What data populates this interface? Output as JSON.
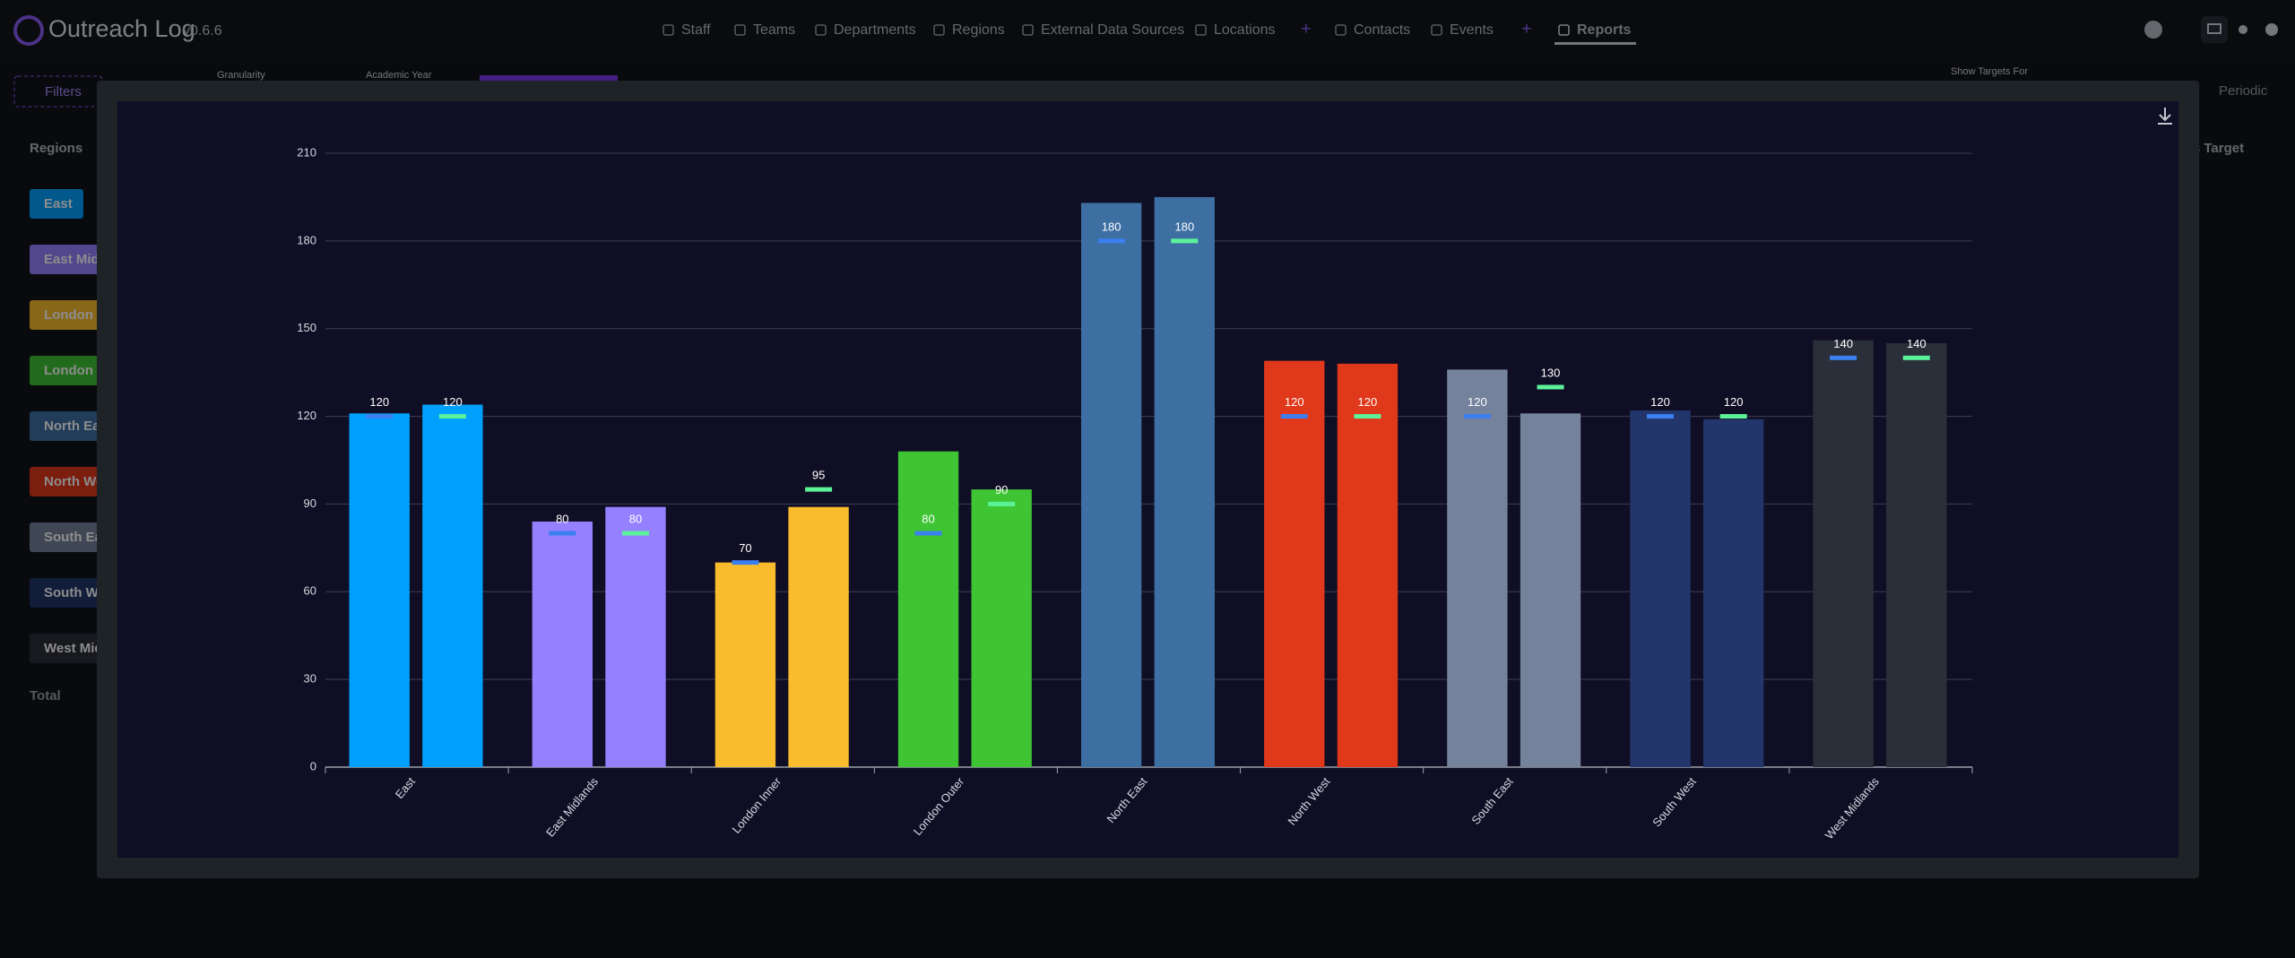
{
  "header": {
    "app_name": "Outreach Log",
    "version": "v0.6.6",
    "nav": [
      "Staff",
      "Teams",
      "Departments",
      "Regions",
      "External Data Sources",
      "Locations",
      "Contacts",
      "Events",
      "Reports"
    ]
  },
  "toolbar": {
    "filters": "Filters",
    "granularity": "Granularity",
    "academic_year": "Academic Year",
    "show_targets_for": "Show Targets For",
    "periodic": "Periodic"
  },
  "sidebar": {
    "title": "Regions",
    "items": [
      "East",
      "East Midlands",
      "London Inner",
      "London Outer",
      "North East",
      "North West",
      "South East",
      "South West",
      "West Midlands"
    ],
    "total": "Total"
  },
  "table": {
    "column": "Events Target"
  },
  "chart_data": {
    "type": "bar",
    "categories": [
      "East",
      "East Midlands",
      "London Inner",
      "London Outer",
      "North East",
      "North West",
      "South East",
      "South West",
      "West Midlands"
    ],
    "colors": [
      "#00a0ff",
      "#9580ff",
      "#f9bc2c",
      "#3fc433",
      "#3d6fa3",
      "#e0381a",
      "#74829c",
      "#22366b",
      "#2a2f3a"
    ],
    "series": [
      {
        "values": [
          121,
          84,
          70,
          108,
          193,
          139,
          136,
          122,
          146
        ],
        "target_values": [
          120,
          80,
          70,
          80,
          180,
          120,
          120,
          120,
          140
        ],
        "target_color": "#3b7ff0"
      },
      {
        "values": [
          124,
          89,
          89,
          95,
          195,
          138,
          121,
          119,
          145
        ],
        "target_values": [
          120,
          80,
          95,
          90,
          180,
          120,
          130,
          120,
          140
        ],
        "target_color": "#5cf29a"
      }
    ],
    "ylim": [
      0,
      210
    ],
    "yticks": [
      0,
      30,
      60,
      90,
      120,
      150,
      180,
      210
    ],
    "grid": true
  }
}
